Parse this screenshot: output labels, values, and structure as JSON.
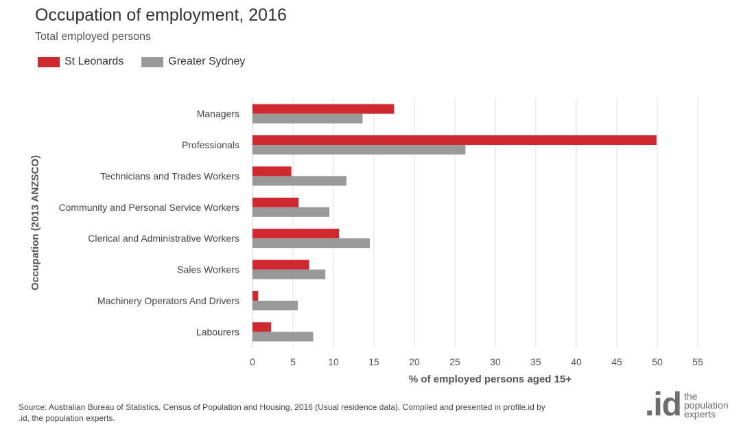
{
  "page": {
    "title": "Occupation of employment, 2016",
    "subtitle": "Total employed persons"
  },
  "colors": {
    "st_leonards": "#d0282f",
    "greater_sydney": "#999999",
    "grid": "#e0e0e0"
  },
  "chart_data": {
    "type": "bar",
    "orientation": "horizontal",
    "title": "Occupation of employment, 2016",
    "subtitle": "Total employed persons",
    "categories": [
      "Managers",
      "Professionals",
      "Technicians and Trades Workers",
      "Community and Personal Service Workers",
      "Clerical and Administrative Workers",
      "Sales Workers",
      "Machinery Operators And Drivers",
      "Labourers"
    ],
    "series": [
      {
        "name": "St Leonards",
        "values": [
          17.5,
          49.9,
          4.8,
          5.7,
          10.7,
          7.0,
          0.7,
          2.3
        ]
      },
      {
        "name": "Greater Sydney",
        "values": [
          13.6,
          26.3,
          11.6,
          9.5,
          14.5,
          9.0,
          5.6,
          7.5
        ]
      }
    ],
    "xlabel": "% of employed persons aged 15+",
    "ylabel": "Occupation (2013 ANZSCO)",
    "xlim": [
      0,
      55
    ],
    "xticks": [
      0,
      5,
      10,
      15,
      20,
      25,
      30,
      35,
      40,
      45,
      50,
      55
    ],
    "grid": true,
    "legend_position": "top-left"
  },
  "footer": {
    "source": "Source: Australian Bureau of Statistics, Census of Population and Housing, 2016 (Usual residence data). Compiled and presented in profile.id by .id, the population experts.",
    "logo_mark": ".id",
    "logo_line1": "the",
    "logo_line2": "population",
    "logo_line3": "experts"
  }
}
